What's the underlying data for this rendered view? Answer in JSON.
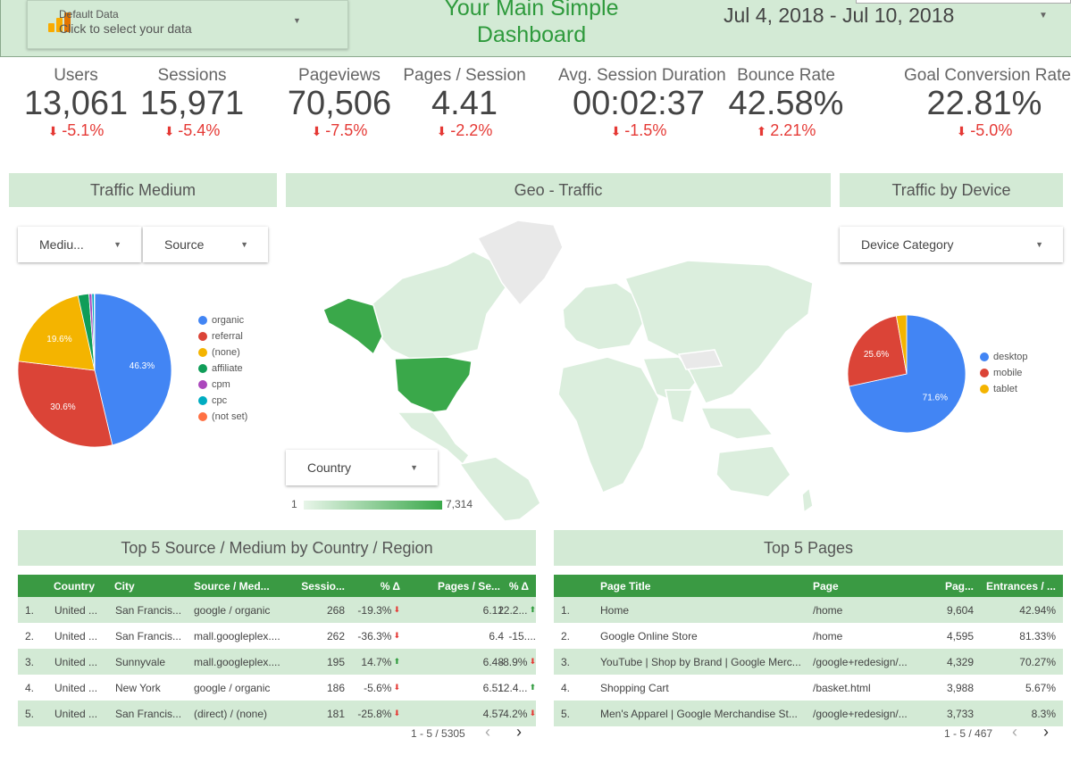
{
  "header": {
    "datasource_title": "Default Data",
    "datasource_subtitle": "Click to select your data",
    "title_line1": "Your Main Simple",
    "title_line2": "Dashboard",
    "date_range": "Jul 4, 2018 - Jul 10, 2018"
  },
  "kpis": [
    {
      "label": "Users",
      "value": "13,061",
      "delta": "-5.1%",
      "dir": "down"
    },
    {
      "label": "Sessions",
      "value": "15,971",
      "delta": "-5.4%",
      "dir": "down"
    },
    {
      "label": "Pageviews",
      "value": "70,506",
      "delta": "-7.5%",
      "dir": "down"
    },
    {
      "label": "Pages / Session",
      "value": "4.41",
      "delta": "-2.2%",
      "dir": "down"
    },
    {
      "label": "Avg. Session Duration",
      "value": "00:02:37",
      "delta": "-1.5%",
      "dir": "down"
    },
    {
      "label": "Bounce Rate",
      "value": "42.58%",
      "delta": "2.21%",
      "dir": "up"
    },
    {
      "label": "Goal Conversion Rate",
      "value": "22.81%",
      "delta": "-5.0%",
      "dir": "down"
    }
  ],
  "sections": {
    "traffic_medium": "Traffic Medium",
    "geo_traffic": "Geo - Traffic",
    "traffic_device": "Traffic by Device",
    "top_source": "Top 5 Source / Medium by Country  / Region",
    "top_pages": "Top 5 Pages"
  },
  "filters": {
    "medium": "Mediu...",
    "source": "Source",
    "device": "Device Category",
    "country": "Country"
  },
  "geo_scale": {
    "min": "1",
    "max": "7,314"
  },
  "colors": {
    "accent": "#3a9a43",
    "band": "#d3ead5",
    "negative": "#e53935",
    "positive": "#2e9a3c"
  },
  "chart_data": [
    {
      "type": "pie",
      "name": "traffic-medium",
      "slices": [
        {
          "label": "organic",
          "value": 46.3,
          "color": "#4285f4",
          "shown": "46.3%"
        },
        {
          "label": "referral",
          "value": 30.6,
          "color": "#db4437",
          "shown": "30.6%"
        },
        {
          "label": "(none)",
          "value": 19.6,
          "color": "#f4b400",
          "shown": "19.6%"
        },
        {
          "label": "affiliate",
          "value": 2.3,
          "color": "#0f9d58",
          "shown": ""
        },
        {
          "label": "cpm",
          "value": 0.6,
          "color": "#ab47bc",
          "shown": ""
        },
        {
          "label": "cpc",
          "value": 0.5,
          "color": "#00acc1",
          "shown": ""
        },
        {
          "label": "(not set)",
          "value": 0.1,
          "color": "#ff7043",
          "shown": ""
        }
      ],
      "legend": "right"
    },
    {
      "type": "pie",
      "name": "traffic-device",
      "slices": [
        {
          "label": "desktop",
          "value": 71.6,
          "color": "#4285f4",
          "shown": "71.6%"
        },
        {
          "label": "mobile",
          "value": 25.6,
          "color": "#db4437",
          "shown": "25.6%"
        },
        {
          "label": "tablet",
          "value": 2.8,
          "color": "#f4b400",
          "shown": ""
        }
      ],
      "legend": "right"
    }
  ],
  "source_table": {
    "headers": [
      "Country",
      "City",
      "Source / Med...",
      "Sessio...",
      "% Δ",
      "Pages / Se...",
      "% Δ"
    ],
    "rows": [
      {
        "n": "1.",
        "country": "United ...",
        "city": "San Francis...",
        "source": "google / organic",
        "sessions": "268",
        "d1": "-19.3%",
        "d1dir": "down",
        "pps": "6.12",
        "d2": "12.2...",
        "d2dir": "up"
      },
      {
        "n": "2.",
        "country": "United ...",
        "city": "San Francis...",
        "source": "mall.googleplex....",
        "sessions": "262",
        "d1": "-36.3%",
        "d1dir": "down",
        "pps": "6.4",
        "d2": "-15....",
        "d2dir": "none"
      },
      {
        "n": "3.",
        "country": "United ...",
        "city": "Sunnyvale",
        "source": "mall.googleplex....",
        "sessions": "195",
        "d1": "14.7%",
        "d1dir": "up",
        "pps": "6.48",
        "d2": "-8.9%",
        "d2dir": "down"
      },
      {
        "n": "4.",
        "country": "United ...",
        "city": "New York",
        "source": "google / organic",
        "sessions": "186",
        "d1": "-5.6%",
        "d1dir": "down",
        "pps": "6.51",
        "d2": "12.4...",
        "d2dir": "up"
      },
      {
        "n": "5.",
        "country": "United ...",
        "city": "San Francis...",
        "source": "(direct) / (none)",
        "sessions": "181",
        "d1": "-25.8%",
        "d1dir": "down",
        "pps": "4.57",
        "d2": "-4.2%",
        "d2dir": "down"
      }
    ],
    "pager": "1 - 5 / 5305"
  },
  "pages_table": {
    "headers": [
      "Page Title",
      "Page",
      "Pag...",
      "Entrances / ..."
    ],
    "rows": [
      {
        "n": "1.",
        "title": "Home",
        "page": "/home",
        "pv": "9,604",
        "ent": "42.94%"
      },
      {
        "n": "2.",
        "title": "Google Online Store",
        "page": "/home",
        "pv": "4,595",
        "ent": "81.33%"
      },
      {
        "n": "3.",
        "title": "YouTube | Shop by Brand | Google Merc...",
        "page": "/google+redesign/...",
        "pv": "4,329",
        "ent": "70.27%"
      },
      {
        "n": "4.",
        "title": "Shopping Cart",
        "page": "/basket.html",
        "pv": "3,988",
        "ent": "5.67%"
      },
      {
        "n": "5.",
        "title": "Men's Apparel | Google Merchandise St...",
        "page": "/google+redesign/...",
        "pv": "3,733",
        "ent": "8.3%"
      }
    ],
    "pager": "1 - 5 / 467"
  }
}
